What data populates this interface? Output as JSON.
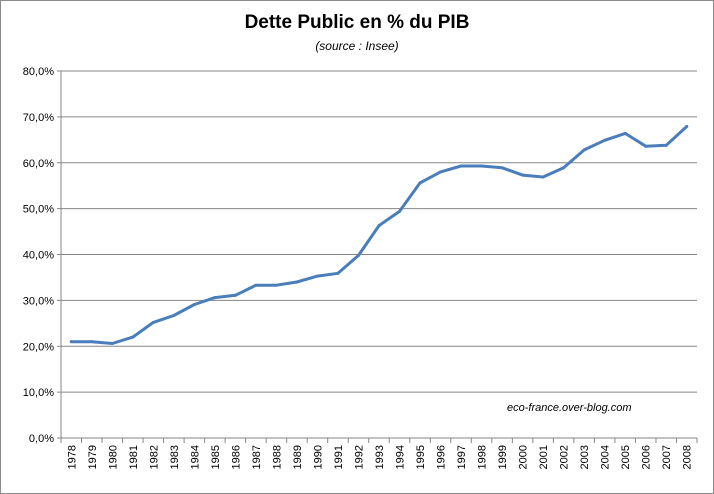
{
  "chart_data": {
    "type": "line",
    "title": "Dette Public en % du PIB",
    "subtitle": "(source : Insee)",
    "xlabel": "",
    "ylabel": "",
    "ylim": [
      0,
      80
    ],
    "y_ticks": [
      0,
      10,
      20,
      30,
      40,
      50,
      60,
      70,
      80
    ],
    "y_tick_labels": [
      "0,0%",
      "10,0%",
      "20,0%",
      "30,0%",
      "40,0%",
      "50,0%",
      "60,0%",
      "70,0%",
      "80,0%"
    ],
    "categories": [
      "1978",
      "1979",
      "1980",
      "1981",
      "1982",
      "1983",
      "1984",
      "1985",
      "1986",
      "1987",
      "1988",
      "1989",
      "1990",
      "1991",
      "1992",
      "1993",
      "1994",
      "1995",
      "1996",
      "1997",
      "1998",
      "1999",
      "2000",
      "2001",
      "2002",
      "2003",
      "2004",
      "2005",
      "2006",
      "2007",
      "2008"
    ],
    "series": [
      {
        "values": [
          21.0,
          21.0,
          20.6,
          22.0,
          25.2,
          26.7,
          29.1,
          30.6,
          31.1,
          33.3,
          33.3,
          34.0,
          35.3,
          35.9,
          39.8,
          46.3,
          49.4,
          55.6,
          58.0,
          59.3,
          59.3,
          58.9,
          57.3,
          56.9,
          58.9,
          62.8,
          64.9,
          66.4,
          63.6,
          63.8,
          67.9
        ],
        "color": "#4a7ebb"
      }
    ],
    "grid": true,
    "legend": "none",
    "annotation": "eco-france.over-blog.com"
  }
}
